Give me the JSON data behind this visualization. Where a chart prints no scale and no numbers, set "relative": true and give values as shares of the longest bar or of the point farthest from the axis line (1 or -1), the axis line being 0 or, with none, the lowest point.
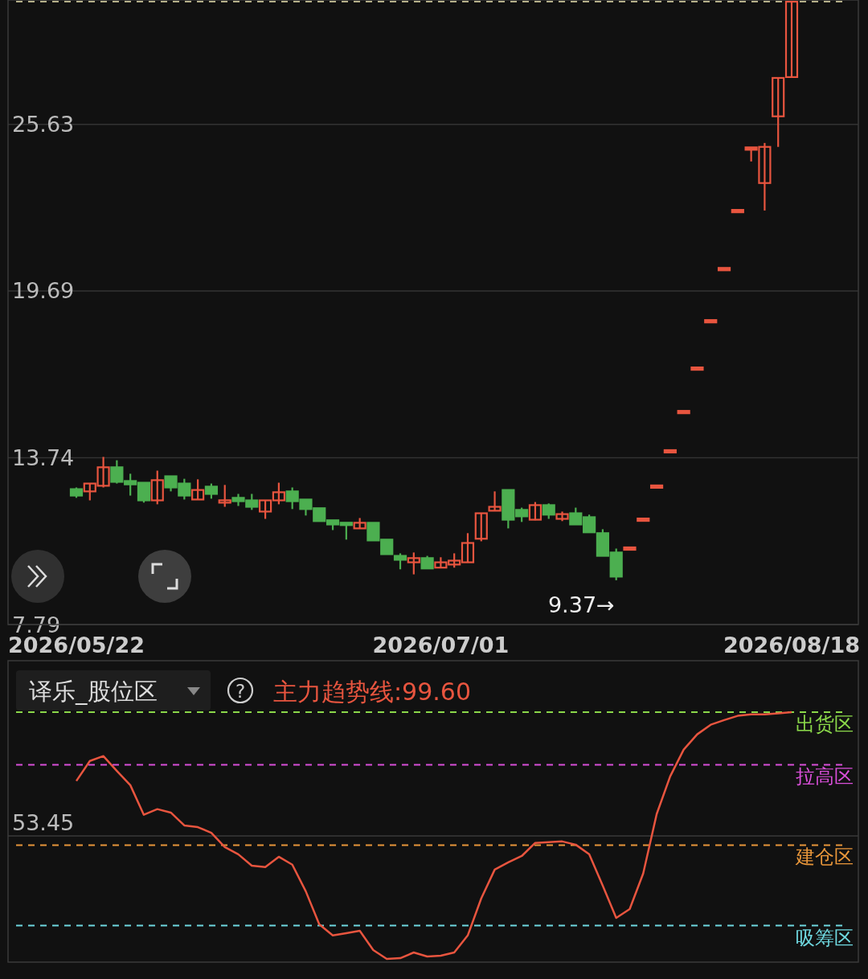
{
  "chart_data": [
    {
      "type": "candlestick",
      "categories": [
        "2026/05/22",
        null,
        null,
        null,
        null,
        null,
        null,
        null,
        null,
        null,
        null,
        null,
        null,
        null,
        null,
        null,
        null,
        null,
        null,
        null,
        null,
        null,
        null,
        null,
        null,
        null,
        null,
        "2026/07/01",
        null,
        null,
        null,
        null,
        null,
        null,
        null,
        null,
        null,
        null,
        null,
        null,
        null,
        null,
        null,
        null,
        null,
        null,
        null,
        null,
        null,
        null,
        null,
        null,
        null,
        "2026/08/18"
      ],
      "ohlc": [
        [
          12.62,
          12.68,
          12.31,
          12.39
        ],
        [
          12.54,
          12.82,
          12.22,
          12.82
        ],
        [
          12.74,
          13.77,
          12.68,
          13.4
        ],
        [
          13.4,
          13.65,
          12.82,
          12.88
        ],
        [
          12.91,
          13.17,
          12.39,
          12.79
        ],
        [
          12.85,
          12.85,
          12.14,
          12.22
        ],
        [
          12.22,
          13.28,
          12.08,
          12.94
        ],
        [
          13.08,
          13.08,
          12.54,
          12.68
        ],
        [
          12.82,
          12.99,
          12.25,
          12.39
        ],
        [
          12.25,
          12.97,
          12.25,
          12.59
        ],
        [
          12.71,
          12.82,
          12.28,
          12.45
        ],
        [
          12.14,
          12.77,
          11.99,
          12.22
        ],
        [
          12.31,
          12.45,
          12.02,
          12.19
        ],
        [
          12.22,
          12.45,
          11.88,
          11.99
        ],
        [
          11.82,
          12.22,
          11.56,
          12.22
        ],
        [
          12.22,
          12.85,
          12.08,
          12.51
        ],
        [
          12.54,
          12.68,
          11.91,
          12.19
        ],
        [
          12.25,
          12.25,
          11.68,
          11.91
        ],
        [
          11.94,
          11.94,
          11.48,
          11.48
        ],
        [
          11.51,
          11.51,
          11.16,
          11.36
        ],
        [
          11.42,
          11.42,
          10.82,
          11.34
        ],
        [
          11.22,
          11.59,
          11.22,
          11.42
        ],
        [
          11.42,
          11.42,
          10.79,
          10.79
        ],
        [
          10.82,
          10.82,
          10.3,
          10.3
        ],
        [
          10.24,
          10.33,
          9.76,
          10.1
        ],
        [
          10.01,
          10.36,
          9.58,
          10.16
        ],
        [
          10.16,
          10.24,
          9.79,
          9.79
        ],
        [
          9.82,
          10.19,
          9.82,
          10.01
        ],
        [
          9.93,
          10.33,
          9.82,
          10.07
        ],
        [
          10.01,
          11.05,
          10.01,
          10.7
        ],
        [
          10.85,
          11.76,
          10.76,
          11.76
        ],
        [
          11.85,
          12.54,
          11.85,
          11.99
        ],
        [
          12.59,
          12.59,
          11.22,
          11.53
        ],
        [
          11.88,
          11.96,
          11.45,
          11.65
        ],
        [
          11.53,
          12.16,
          11.51,
          12.05
        ],
        [
          12.05,
          12.11,
          11.56,
          11.71
        ],
        [
          11.56,
          11.82,
          11.48,
          11.73
        ],
        [
          11.76,
          11.96,
          11.36,
          11.36
        ],
        [
          11.62,
          11.71,
          11.08,
          11.08
        ],
        [
          11.05,
          11.19,
          10.24,
          10.24
        ],
        [
          10.36,
          10.5,
          9.37,
          9.5
        ],
        [
          10.5,
          10.5,
          10.5,
          10.5
        ],
        [
          11.53,
          11.53,
          11.53,
          11.53
        ],
        [
          12.71,
          12.71,
          12.71,
          12.71
        ],
        [
          13.97,
          13.97,
          13.97,
          13.97
        ],
        [
          15.37,
          15.37,
          15.37,
          15.37
        ],
        [
          16.92,
          16.92,
          16.92,
          16.92
        ],
        [
          18.61,
          18.61,
          18.61,
          18.61
        ],
        [
          20.47,
          20.47,
          20.47,
          20.47
        ],
        [
          22.54,
          22.54,
          22.54,
          22.54
        ],
        [
          24.77,
          24.77,
          24.31,
          24.77
        ],
        [
          23.54,
          24.97,
          22.56,
          24.83
        ],
        [
          25.92,
          27.29,
          24.83,
          27.29
        ],
        [
          27.32,
          30.01,
          27.32,
          30.01
        ]
      ],
      "colors": [
        "#4caf50",
        "#e8553f",
        "#e8553f",
        "#4caf50",
        "#4caf50",
        "#4caf50",
        "#e8553f",
        "#4caf50",
        "#4caf50",
        "#e8553f",
        "#4caf50",
        "#e8553f",
        "#4caf50",
        "#4caf50",
        "#e8553f",
        "#e8553f",
        "#4caf50",
        "#4caf50",
        "#4caf50",
        "#4caf50",
        "#4caf50",
        "#e8553f",
        "#4caf50",
        "#4caf50",
        "#4caf50",
        "#e8553f",
        "#4caf50",
        "#e8553f",
        "#e8553f",
        "#e8553f",
        "#e8553f",
        "#e8553f",
        "#4caf50",
        "#4caf50",
        "#e8553f",
        "#4caf50",
        "#e8553f",
        "#4caf50",
        "#4caf50",
        "#4caf50",
        "#4caf50",
        "#e8553f",
        "#e8553f",
        "#e8553f",
        "#e8553f",
        "#e8553f",
        "#e8553f",
        "#e8553f",
        "#e8553f",
        "#e8553f",
        "#e8553f",
        "#e8553f",
        "#e8553f",
        "#e8553f"
      ],
      "ylim": [
        7.79,
        30.07
      ],
      "yticks": [
        7.79,
        13.74,
        19.69,
        25.63
      ],
      "grid": "y",
      "ref_lines": [
        {
          "axis": "y",
          "value": 30.01,
          "color": "#b5b08a",
          "line_style": "dashed"
        }
      ],
      "annotations": [
        "9.37→"
      ]
    },
    {
      "type": "line",
      "title": "译乐_股位区",
      "categories": [
        null,
        null,
        null,
        null,
        null,
        null,
        null,
        null,
        null,
        null,
        null,
        null,
        null,
        null,
        null,
        null,
        null,
        null,
        null,
        null,
        null,
        null,
        null,
        null,
        null,
        null,
        null,
        null,
        null,
        null,
        null,
        null,
        null,
        null,
        null,
        null,
        null,
        null,
        null,
        null,
        null,
        null,
        null,
        null,
        null,
        null,
        null,
        null,
        null,
        null,
        null,
        null,
        null,
        null
      ],
      "series": [
        {
          "name": "主力趋势线:99.60",
          "color": "#e8553f",
          "values": [
            0.721,
            0.802,
            0.822,
            0.762,
            0.704,
            0.584,
            0.607,
            0.593,
            0.541,
            0.534,
            0.511,
            0.453,
            0.424,
            0.378,
            0.372,
            0.414,
            0.382,
            0.274,
            0.14,
            0.095,
            0.104,
            0.114,
            0.036,
            0,
            0.003,
            0.026,
            0.01,
            0.013,
            0.026,
            0.095,
            0.245,
            0.362,
            0.391,
            0.417,
            0.47,
            0.473,
            0.476,
            0.463,
            0.424,
            0.297,
            0.166,
            0.202,
            0.346,
            0.587,
            0.74,
            0.848,
            0.91,
            0.949,
            0.968,
            0.985,
            0.991,
            0.991,
            0.995,
            1
          ]
        }
      ],
      "relative": true,
      "tick_labels": false,
      "ref_lines": [
        {
          "axis": "y",
          "value": 1,
          "label": "出货区",
          "color": "#8bd84a",
          "line_style": "dashed"
        },
        {
          "axis": "y",
          "value": 0.787,
          "label": "拉高区",
          "color": "#d84fd8",
          "line_style": "dashed"
        },
        {
          "axis": "y",
          "value": 0.498,
          "color": "#3a3a3a",
          "line_style": "solid"
        },
        {
          "axis": "y",
          "value": 0.461,
          "label": "建仓区",
          "color": "#e8963a",
          "line_style": "dashed"
        },
        {
          "axis": "y",
          "value": 0.135,
          "label": "吸筹区",
          "color": "#6fd8e0",
          "line_style": "dashed"
        }
      ],
      "annotations": [
        "?",
        "53.45"
      ]
    }
  ]
}
